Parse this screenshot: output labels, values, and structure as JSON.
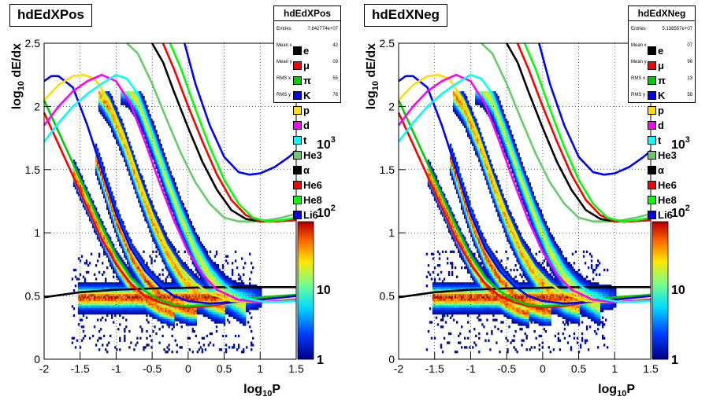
{
  "chart_data": [
    {
      "type": "heatmap",
      "title": "hdEdXPos",
      "xlabel": "log_10 P",
      "ylabel": "log_10 dE/dx",
      "xlim": [
        -2,
        1.5
      ],
      "ylim": [
        0,
        2.5
      ],
      "x_ticks": [
        "-2",
        "-1.5",
        "-1",
        "-0.5",
        "0",
        "0.5",
        "1",
        "1.5"
      ],
      "y_ticks": [
        "0",
        "0.5",
        "1",
        "1.5",
        "2",
        "2.5"
      ],
      "color_scale": "log",
      "colorbar_ticks": [
        "1",
        "10",
        "10",
        "10"
      ],
      "colorbar_exponents": [
        "",
        "",
        "2",
        "3"
      ],
      "grid": true,
      "stats": {
        "title": "hdEdXPos",
        "rows": [
          {
            "label": "Entries",
            "value": "7.642774e+07"
          },
          {
            "label": "Mean x",
            "value": "42"
          },
          {
            "label": "Mean y",
            "value": "03"
          },
          {
            "label": "RMS x",
            "value": "55"
          },
          {
            "label": "RMS y",
            "value": "78"
          }
        ]
      },
      "legend": [
        "e",
        "μ",
        "π",
        "K",
        "p",
        "d",
        "t",
        "He3",
        "α",
        "He6",
        "He8",
        "Li6"
      ],
      "series": [
        {
          "name": "e",
          "color": "#000000",
          "x": [
            -2,
            -1.5,
            -1,
            -0.5,
            0,
            0.5,
            1,
            1.5
          ],
          "y": [
            0.49,
            0.53,
            0.55,
            0.56,
            0.565,
            0.57,
            0.57,
            0.57
          ]
        },
        {
          "name": "μ",
          "color": "#ff0000",
          "x": [
            -2,
            -1.8,
            -1.6,
            -1.4,
            -1.2,
            -1,
            -0.8,
            -0.6,
            -0.4,
            -0.2,
            0,
            0.3,
            0.6,
            1,
            1.5
          ],
          "y": [
            1.95,
            1.7,
            1.45,
            1.2,
            0.95,
            0.75,
            0.6,
            0.5,
            0.45,
            0.42,
            0.41,
            0.42,
            0.45,
            0.48,
            0.5
          ]
        },
        {
          "name": "π",
          "color": "#00cc00",
          "x": [
            -2,
            -1.8,
            -1.6,
            -1.4,
            -1.2,
            -1,
            -0.8,
            -0.6,
            -0.4,
            -0.2,
            0,
            0.3,
            0.6,
            1,
            1.5
          ],
          "y": [
            2.05,
            1.8,
            1.55,
            1.3,
            1.05,
            0.82,
            0.65,
            0.54,
            0.47,
            0.43,
            0.42,
            0.43,
            0.46,
            0.49,
            0.51
          ]
        },
        {
          "name": "K",
          "color": "#0000ff",
          "x": [
            -2,
            -1.9,
            -1.8,
            -1.6,
            -1.4,
            -1.2,
            -1,
            -0.8,
            -0.6,
            -0.4,
            -0.2,
            0,
            0.3,
            0.6,
            1,
            1.5
          ],
          "y": [
            2.2,
            2.24,
            2.24,
            2.15,
            1.85,
            1.5,
            1.15,
            0.88,
            0.7,
            0.58,
            0.5,
            0.46,
            0.44,
            0.45,
            0.47,
            0.5
          ]
        },
        {
          "name": "p",
          "color": "#ffdd00",
          "x": [
            -2,
            -1.8,
            -1.6,
            -1.45,
            -1.3,
            -1.1,
            -0.9,
            -0.7,
            -0.5,
            -0.3,
            -0.1,
            0.1,
            0.3,
            0.6,
            1,
            1.5
          ],
          "y": [
            2.05,
            2.17,
            2.24,
            2.25,
            2.22,
            2.05,
            1.78,
            1.45,
            1.15,
            0.9,
            0.72,
            0.6,
            0.52,
            0.46,
            0.45,
            0.48
          ]
        },
        {
          "name": "d",
          "color": "#ff00ff",
          "x": [
            -2,
            -1.8,
            -1.6,
            -1.4,
            -1.2,
            -1,
            -0.8,
            -0.6,
            -0.4,
            -0.2,
            0,
            0.2,
            0.4,
            0.7,
            1,
            1.5
          ],
          "y": [
            1.85,
            2.0,
            2.12,
            2.2,
            2.25,
            2.2,
            2.02,
            1.72,
            1.4,
            1.1,
            0.85,
            0.67,
            0.55,
            0.47,
            0.45,
            0.47
          ]
        },
        {
          "name": "t",
          "color": "#00ffff",
          "x": [
            -2,
            -1.8,
            -1.6,
            -1.4,
            -1.2,
            -1,
            -0.85,
            -0.7,
            -0.5,
            -0.3,
            -0.1,
            0.1,
            0.3,
            0.5,
            0.8,
            1.1,
            1.5
          ],
          "y": [
            1.72,
            1.87,
            2.0,
            2.1,
            2.18,
            2.25,
            2.22,
            2.1,
            1.8,
            1.48,
            1.18,
            0.92,
            0.72,
            0.59,
            0.48,
            0.45,
            0.46
          ]
        },
        {
          "name": "He3",
          "color": "#66cc66",
          "x": [
            -0.85,
            -0.7,
            -0.5,
            -0.3,
            -0.1,
            0.1,
            0.3,
            0.5,
            0.7,
            0.9,
            1.1,
            1.3,
            1.5
          ],
          "y": [
            2.5,
            2.42,
            2.18,
            1.9,
            1.63,
            1.4,
            1.23,
            1.12,
            1.09,
            1.09,
            1.1,
            1.12,
            1.15
          ]
        },
        {
          "name": "α",
          "color": "#000000",
          "x": [
            -0.5,
            -0.35,
            -0.2,
            0,
            0.2,
            0.4,
            0.6,
            0.8,
            1.0,
            1.2,
            1.5
          ],
          "y": [
            2.5,
            2.35,
            2.12,
            1.83,
            1.56,
            1.34,
            1.18,
            1.11,
            1.09,
            1.09,
            1.1
          ]
        },
        {
          "name": "He6",
          "color": "#ff0000",
          "x": [
            -0.35,
            -0.2,
            0,
            0.2,
            0.4,
            0.6,
            0.8,
            1.0,
            1.2,
            1.5
          ],
          "y": [
            2.5,
            2.3,
            2.0,
            1.72,
            1.46,
            1.26,
            1.14,
            1.09,
            1.09,
            1.1
          ]
        },
        {
          "name": "He8",
          "color": "#00ff00",
          "x": [
            -0.25,
            -0.1,
            0.1,
            0.3,
            0.5,
            0.7,
            0.9,
            1.1,
            1.3,
            1.5
          ],
          "y": [
            2.5,
            2.3,
            1.98,
            1.68,
            1.42,
            1.23,
            1.12,
            1.09,
            1.1,
            1.12
          ]
        },
        {
          "name": "Li6",
          "color": "#0000ff",
          "x": [
            -0.05,
            0.1,
            0.3,
            0.5,
            0.7,
            0.85,
            1.0,
            1.2,
            1.4,
            1.5
          ],
          "y": [
            2.5,
            2.18,
            1.85,
            1.6,
            1.48,
            1.46,
            1.47,
            1.52,
            1.6,
            1.65
          ]
        }
      ]
    },
    {
      "type": "heatmap",
      "title": "hdEdXNeg",
      "xlabel": "log_10 P",
      "ylabel": "log_10 dE/dx",
      "xlim": [
        -2,
        1.5
      ],
      "ylim": [
        0,
        2.5
      ],
      "x_ticks": [
        "-2",
        "-1.5",
        "-1",
        "-0.5",
        "0",
        "0.5",
        "1",
        "1.5"
      ],
      "y_ticks": [
        "0",
        "0.5",
        "1",
        "1.5",
        "2",
        "2.5"
      ],
      "color_scale": "log",
      "colorbar_ticks": [
        "1",
        "10",
        "10",
        "10"
      ],
      "colorbar_exponents": [
        "",
        "",
        "2",
        "3"
      ],
      "grid": true,
      "stats": {
        "title": "hdEdXNeg",
        "rows": [
          {
            "label": "Entries",
            "value": "5.138557e+07"
          },
          {
            "label": "Mean x",
            "value": "07"
          },
          {
            "label": "Mean y",
            "value": "96"
          },
          {
            "label": "RMS x",
            "value": "13"
          },
          {
            "label": "RMS y",
            "value": "58"
          }
        ]
      },
      "legend": [
        "e",
        "μ",
        "π",
        "K",
        "p",
        "d",
        "t",
        "He3",
        "α",
        "He6",
        "He8",
        "Li6"
      ],
      "series": [
        {
          "name": "e",
          "color": "#000000",
          "x": [
            -2,
            -1.5,
            -1,
            -0.5,
            0,
            0.5,
            1,
            1.5
          ],
          "y": [
            0.49,
            0.53,
            0.55,
            0.56,
            0.565,
            0.57,
            0.57,
            0.57
          ]
        },
        {
          "name": "μ",
          "color": "#ff0000",
          "x": [
            -2,
            -1.8,
            -1.6,
            -1.4,
            -1.2,
            -1,
            -0.8,
            -0.6,
            -0.4,
            -0.2,
            0,
            0.3,
            0.6,
            1,
            1.5
          ],
          "y": [
            1.95,
            1.7,
            1.45,
            1.2,
            0.95,
            0.75,
            0.6,
            0.5,
            0.45,
            0.42,
            0.41,
            0.42,
            0.45,
            0.48,
            0.5
          ]
        },
        {
          "name": "π",
          "color": "#00cc00",
          "x": [
            -2,
            -1.8,
            -1.6,
            -1.4,
            -1.2,
            -1,
            -0.8,
            -0.6,
            -0.4,
            -0.2,
            0,
            0.3,
            0.6,
            1,
            1.5
          ],
          "y": [
            2.05,
            1.8,
            1.55,
            1.3,
            1.05,
            0.82,
            0.65,
            0.54,
            0.47,
            0.43,
            0.42,
            0.43,
            0.46,
            0.49,
            0.51
          ]
        },
        {
          "name": "K",
          "color": "#0000ff",
          "x": [
            -2,
            -1.9,
            -1.8,
            -1.6,
            -1.4,
            -1.2,
            -1,
            -0.8,
            -0.6,
            -0.4,
            -0.2,
            0,
            0.3,
            0.6,
            1,
            1.5
          ],
          "y": [
            2.2,
            2.24,
            2.24,
            2.15,
            1.85,
            1.5,
            1.15,
            0.88,
            0.7,
            0.58,
            0.5,
            0.46,
            0.44,
            0.45,
            0.47,
            0.5
          ]
        },
        {
          "name": "p",
          "color": "#ffdd00",
          "x": [
            -2,
            -1.8,
            -1.6,
            -1.45,
            -1.3,
            -1.1,
            -0.9,
            -0.7,
            -0.5,
            -0.3,
            -0.1,
            0.1,
            0.3,
            0.6,
            1,
            1.5
          ],
          "y": [
            2.05,
            2.17,
            2.24,
            2.25,
            2.22,
            2.05,
            1.78,
            1.45,
            1.15,
            0.9,
            0.72,
            0.6,
            0.52,
            0.46,
            0.45,
            0.48
          ]
        },
        {
          "name": "d",
          "color": "#ff00ff",
          "x": [
            -2,
            -1.8,
            -1.6,
            -1.4,
            -1.2,
            -1,
            -0.8,
            -0.6,
            -0.4,
            -0.2,
            0,
            0.2,
            0.4,
            0.7,
            1,
            1.5
          ],
          "y": [
            1.85,
            2.0,
            2.12,
            2.2,
            2.25,
            2.2,
            2.02,
            1.72,
            1.4,
            1.1,
            0.85,
            0.67,
            0.55,
            0.47,
            0.45,
            0.47
          ]
        },
        {
          "name": "t",
          "color": "#00ffff",
          "x": [
            -2,
            -1.8,
            -1.6,
            -1.4,
            -1.2,
            -1,
            -0.85,
            -0.7,
            -0.5,
            -0.3,
            -0.1,
            0.1,
            0.3,
            0.5,
            0.8,
            1.1,
            1.5
          ],
          "y": [
            1.72,
            1.87,
            2.0,
            2.1,
            2.18,
            2.25,
            2.22,
            2.1,
            1.8,
            1.48,
            1.18,
            0.92,
            0.72,
            0.59,
            0.48,
            0.45,
            0.46
          ]
        },
        {
          "name": "He3",
          "color": "#66cc66",
          "x": [
            -0.85,
            -0.7,
            -0.5,
            -0.3,
            -0.1,
            0.1,
            0.3,
            0.5,
            0.7,
            0.9,
            1.1,
            1.3,
            1.5
          ],
          "y": [
            2.5,
            2.42,
            2.18,
            1.9,
            1.63,
            1.4,
            1.23,
            1.12,
            1.09,
            1.09,
            1.1,
            1.12,
            1.15
          ]
        },
        {
          "name": "α",
          "color": "#000000",
          "x": [
            -0.5,
            -0.35,
            -0.2,
            0,
            0.2,
            0.4,
            0.6,
            0.8,
            1.0,
            1.2,
            1.5
          ],
          "y": [
            2.5,
            2.35,
            2.12,
            1.83,
            1.56,
            1.34,
            1.18,
            1.11,
            1.09,
            1.09,
            1.1
          ]
        },
        {
          "name": "He6",
          "color": "#ff0000",
          "x": [
            -0.35,
            -0.2,
            0,
            0.2,
            0.4,
            0.6,
            0.8,
            1.0,
            1.2,
            1.5
          ],
          "y": [
            2.5,
            2.3,
            2.0,
            1.72,
            1.46,
            1.26,
            1.14,
            1.09,
            1.09,
            1.1
          ]
        },
        {
          "name": "He8",
          "color": "#00ff00",
          "x": [
            -0.25,
            -0.1,
            0.1,
            0.3,
            0.5,
            0.7,
            0.9,
            1.1,
            1.3,
            1.5
          ],
          "y": [
            2.5,
            2.3,
            1.98,
            1.68,
            1.42,
            1.23,
            1.12,
            1.09,
            1.1,
            1.12
          ]
        },
        {
          "name": "Li6",
          "color": "#0000ff",
          "x": [
            -0.05,
            0.1,
            0.3,
            0.5,
            0.7,
            0.85,
            1.0,
            1.2,
            1.4,
            1.5
          ],
          "y": [
            2.5,
            2.18,
            1.85,
            1.6,
            1.48,
            1.46,
            1.47,
            1.52,
            1.6,
            1.65
          ]
        }
      ]
    }
  ]
}
